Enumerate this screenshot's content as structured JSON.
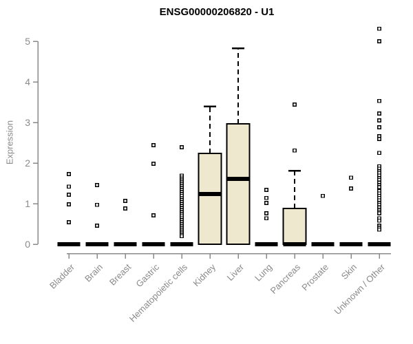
{
  "colors": {
    "box_fill": "#EDE8CE",
    "box_border": "#000000",
    "median": "#000000",
    "axis": "#8A8A8A",
    "tick_label": "#8A8A8A",
    "title": "#000000",
    "outlier_stroke": "#000000",
    "outlier_fill": "#FFFFFF",
    "background": "#FFFFFF"
  },
  "chart_data": {
    "type": "boxplot",
    "title": "ENSG00000206820 - U1",
    "ylabel": "Expression",
    "xlabel": "",
    "ylim": [
      0,
      5
    ],
    "yticks": [
      0,
      1,
      2,
      3,
      4,
      5
    ],
    "grid": false,
    "legend": false,
    "categories": [
      "Bladder",
      "Brain",
      "Breast",
      "Gastric",
      "Hematopoietic cells",
      "Kidney",
      "Liver",
      "Lung",
      "Pancreas",
      "Prostate",
      "Skin",
      "Unknown / Other"
    ],
    "series": [
      {
        "category": "Bladder",
        "q1": 0,
        "median": 0,
        "q3": 0,
        "whisker_low": 0,
        "whisker_high": 0,
        "outliers": [
          1.73,
          1.42,
          1.22,
          0.98,
          0.54
        ]
      },
      {
        "category": "Brain",
        "q1": 0,
        "median": 0,
        "q3": 0,
        "whisker_low": 0,
        "whisker_high": 0,
        "outliers": [
          1.46,
          0.97,
          0.46
        ]
      },
      {
        "category": "Breast",
        "q1": 0,
        "median": 0,
        "q3": 0,
        "whisker_low": 0,
        "whisker_high": 0,
        "outliers": [
          1.07,
          0.88
        ]
      },
      {
        "category": "Gastric",
        "q1": 0,
        "median": 0,
        "q3": 0,
        "whisker_low": 0,
        "whisker_high": 0,
        "outliers": [
          2.44,
          1.98,
          0.71
        ]
      },
      {
        "category": "Hematopoietic cells",
        "q1": 0,
        "median": 0,
        "q3": 0,
        "whisker_low": 0,
        "whisker_high": 0,
        "outliers": [
          2.39,
          1.69,
          1.64,
          1.59,
          1.54,
          1.49,
          1.44,
          1.39,
          1.34,
          1.29,
          1.24,
          1.19,
          1.14,
          1.09,
          1.04,
          0.99,
          0.94,
          0.89,
          0.84,
          0.79,
          0.74,
          0.69,
          0.64,
          0.59,
          0.54,
          0.49,
          0.44,
          0.39,
          0.34,
          0.29,
          0.24,
          0.2
        ]
      },
      {
        "category": "Kidney",
        "q1": 0,
        "median": 1.24,
        "q3": 2.24,
        "whisker_low": 0,
        "whisker_high": 3.39,
        "outliers": []
      },
      {
        "category": "Liver",
        "q1": 0,
        "median": 1.61,
        "q3": 2.97,
        "whisker_low": 0,
        "whisker_high": 4.83,
        "outliers": []
      },
      {
        "category": "Lung",
        "q1": 0,
        "median": 0,
        "q3": 0,
        "whisker_low": 0,
        "whisker_high": 0,
        "outliers": [
          1.34,
          1.14,
          1.02,
          0.76,
          0.64
        ]
      },
      {
        "category": "Pancreas",
        "q1": 0,
        "median": 0,
        "q3": 0.88,
        "whisker_low": 0,
        "whisker_high": 1.81,
        "outliers": [
          3.44,
          2.31
        ]
      },
      {
        "category": "Prostate",
        "q1": 0,
        "median": 0,
        "q3": 0,
        "whisker_low": 0,
        "whisker_high": 0,
        "outliers": [
          1.19
        ]
      },
      {
        "category": "Skin",
        "q1": 0,
        "median": 0,
        "q3": 0,
        "whisker_low": 0,
        "whisker_high": 0,
        "outliers": [
          1.64,
          1.37
        ]
      },
      {
        "category": "Unknown / Other",
        "q1": 0,
        "median": 0,
        "q3": 0,
        "whisker_low": 0,
        "whisker_high": 0,
        "outliers": [
          5.31,
          5.0,
          3.53,
          3.22,
          3.05,
          2.88,
          2.66,
          2.59,
          2.25,
          1.92,
          1.86,
          1.8,
          1.75,
          1.69,
          1.63,
          1.58,
          1.52,
          1.46,
          1.41,
          1.31,
          1.25,
          1.19,
          1.14,
          1.08,
          1.02,
          0.97,
          0.91,
          0.85,
          0.8,
          0.76,
          0.64,
          0.58,
          0.46,
          0.41,
          0.36
        ]
      }
    ]
  }
}
